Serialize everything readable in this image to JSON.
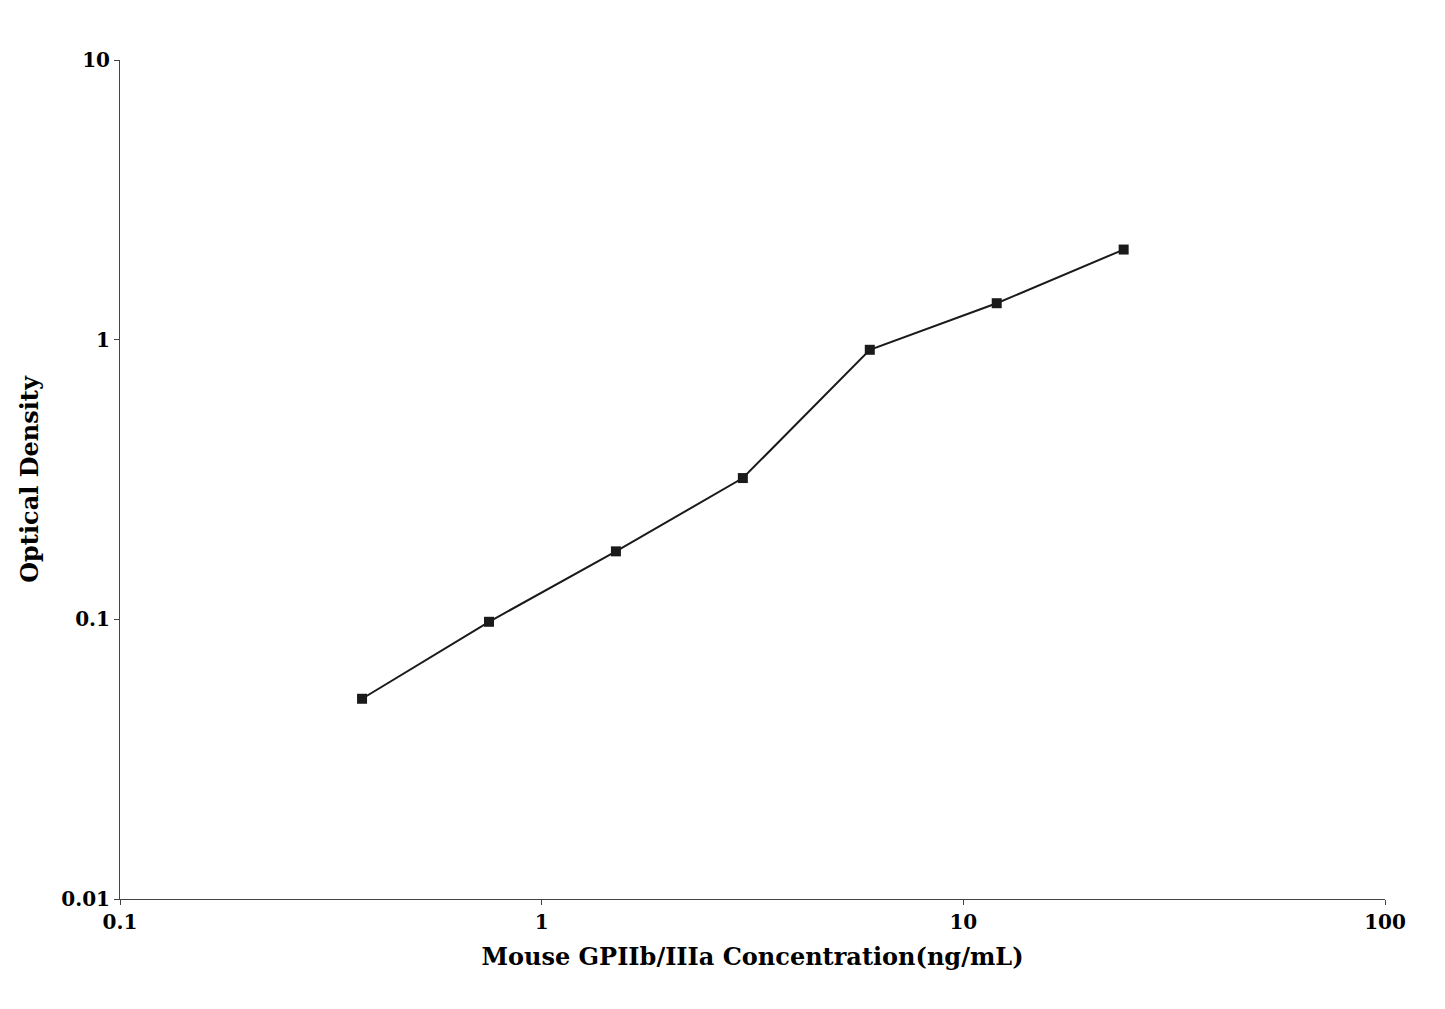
{
  "chart_data": {
    "type": "line",
    "xlabel": "Mouse GPIIb/IIIa Concentration(ng/mL)",
    "ylabel": "Optical Density",
    "x": [
      0.375,
      0.75,
      1.5,
      3.0,
      6.0,
      12.0,
      24.0
    ],
    "values": [
      0.052,
      0.098,
      0.175,
      0.32,
      0.92,
      1.35,
      2.1
    ],
    "xlim": [
      0.1,
      100
    ],
    "ylim": [
      0.01,
      10
    ],
    "xticks": [
      0.1,
      1,
      10,
      100
    ],
    "yticks": [
      0.01,
      0.1,
      1,
      10
    ],
    "log": true,
    "grid": false,
    "color": "#1a1a1a",
    "marker": "square",
    "line_style": "solid"
  }
}
